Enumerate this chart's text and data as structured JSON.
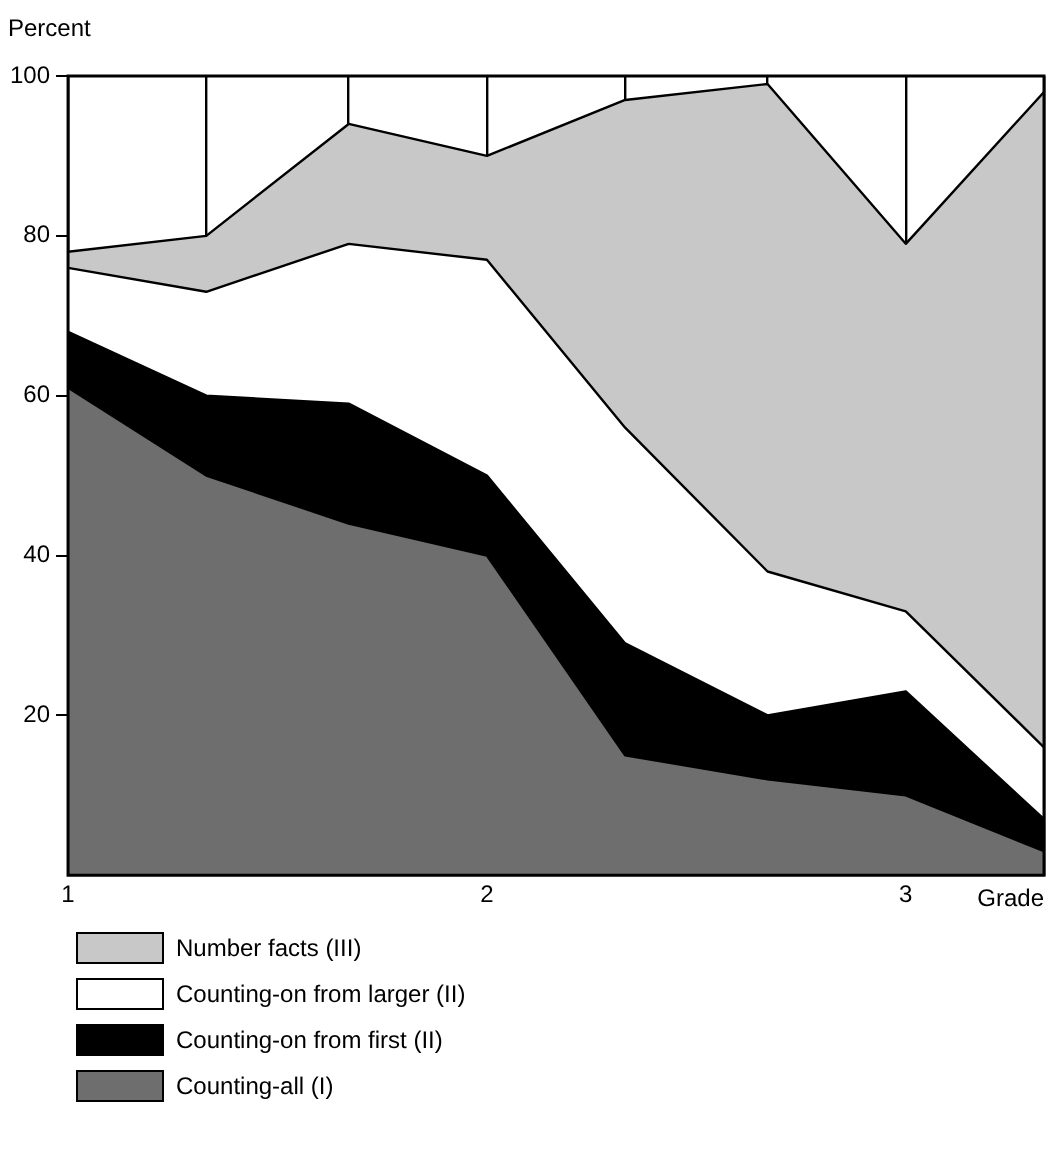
{
  "chart_data": {
    "type": "area",
    "stacked": true,
    "ylabel": "Percent",
    "xlabel": "Grade",
    "x": [
      1,
      1.33,
      1.67,
      2,
      2.33,
      2.67,
      3,
      3.33
    ],
    "xlim": [
      1,
      3.33
    ],
    "xticks": [
      1,
      {
        "value": 1.33,
        "label": null
      },
      {
        "value": 1.67,
        "label": null
      },
      2,
      {
        "value": 2.33,
        "label": null
      },
      {
        "value": 2.67,
        "label": null
      },
      3,
      {
        "value": 3.33,
        "label": null
      }
    ],
    "ylim": [
      0,
      100
    ],
    "yticks": [
      20,
      40,
      60,
      80,
      100
    ],
    "grid": "x",
    "legend": "bottom",
    "marker": "none",
    "series": [
      {
        "name": "Counting-all (I)",
        "color": "#6e6e6e",
        "values": [
          61,
          50,
          44,
          40,
          15,
          12,
          10,
          3
        ]
      },
      {
        "name": "Counting-on from first (II)",
        "color": "#000000",
        "values": [
          7,
          10,
          15,
          10,
          14,
          8,
          13,
          4
        ]
      },
      {
        "name": "Counting-on from larger (II)",
        "color": "#ffffff",
        "values": [
          8,
          13,
          20,
          27,
          27,
          18,
          10,
          9
        ]
      },
      {
        "name": "Number facts (III)",
        "color": "#c8c8c8",
        "values": [
          2,
          7,
          15,
          13,
          41,
          61,
          46,
          82
        ]
      }
    ]
  }
}
